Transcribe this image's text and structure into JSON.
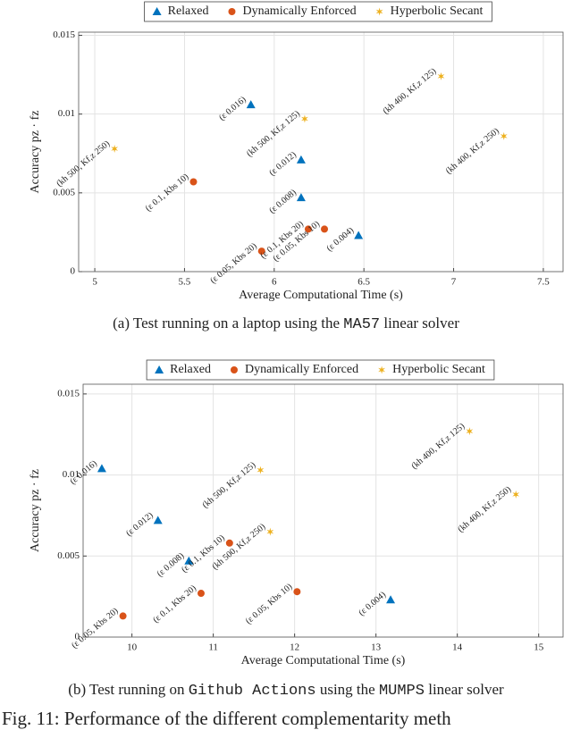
{
  "chart_data": [
    {
      "type": "scatter",
      "caption": [
        "(a) Test running on a laptop using the ",
        "MA57",
        " linear solver"
      ],
      "x_label": "Average Computational Time (s)",
      "y_label": "Accuracy pz · fz",
      "xlim": [
        4.91,
        7.61
      ],
      "ylim": [
        0,
        0.0152
      ],
      "xticks": [
        5,
        5.5,
        6,
        6.5,
        7,
        7.5
      ],
      "yticks": [
        0,
        0.005,
        0.01,
        0.015
      ],
      "grid": true,
      "legend": "top",
      "series": [
        {
          "name": "Relaxed",
          "color": "#0072bd",
          "marker": "triangle",
          "x": [
            5.87,
            6.15,
            6.15,
            6.47
          ],
          "values": [
            0.0106,
            0.0071,
            0.0047,
            0.0023
          ],
          "labels": [
            "(ε 0.016)",
            "(ε 0.012)",
            "(ε 0.008)",
            "(ε 0.004)"
          ]
        },
        {
          "name": "Dynamically Enforced",
          "color": "#d95319",
          "marker": "circle",
          "x": [
            5.55,
            5.93,
            6.19,
            6.28
          ],
          "values": [
            0.0057,
            0.0013,
            0.0027,
            0.0027
          ],
          "labels": [
            "(ε 0.1, Kbs 10)",
            "(ε 0.05, Kbs 20)",
            "(ε 0.1, Kbs 20)",
            "(ε 0.05, Kbs 10)"
          ]
        },
        {
          "name": "Hyperbolic Secant",
          "color": "#edb120",
          "marker": "star",
          "x": [
            5.11,
            6.17,
            6.93,
            7.28
          ],
          "values": [
            0.0078,
            0.0097,
            0.0124,
            0.0086
          ],
          "labels": [
            "(kh 500, Kf,z 250)",
            "(kh 500, Kf,z 125)",
            "(kh 400, Kf,z 125)",
            "(kh 400, Kf,z 250)"
          ]
        }
      ]
    },
    {
      "type": "scatter",
      "caption": [
        "(b) Test running on ",
        "Github Actions",
        " using the ",
        "MUMPS",
        " linear solver"
      ],
      "x_label": "Average Computational Time (s)",
      "y_label": "Accuracy pz · fz",
      "xlim": [
        9.4,
        15.3
      ],
      "ylim": [
        0,
        0.0156
      ],
      "xticks": [
        10,
        11,
        12,
        13,
        14,
        15
      ],
      "yticks": [
        0,
        0.005,
        0.01,
        0.015
      ],
      "grid": true,
      "legend": "top",
      "series": [
        {
          "name": "Relaxed",
          "color": "#0072bd",
          "marker": "triangle",
          "x": [
            9.63,
            10.32,
            10.7,
            13.18
          ],
          "values": [
            0.0104,
            0.0072,
            0.0047,
            0.0023
          ],
          "labels": [
            "(ε 0.016)",
            "(ε 0.012)",
            "(ε 0.008)",
            "(ε 0.004)"
          ]
        },
        {
          "name": "Dynamically Enforced",
          "color": "#d95319",
          "marker": "circle",
          "x": [
            9.89,
            10.85,
            11.2,
            12.03
          ],
          "values": [
            0.0013,
            0.0027,
            0.0058,
            0.0028
          ],
          "labels": [
            "(ε 0.05, Kbs 20)",
            "(ε 0.1, Kbs 20)",
            "(ε 0.1, Kbs 10)",
            "(ε 0.05, Kbs 10)"
          ]
        },
        {
          "name": "Hyperbolic Secant",
          "color": "#edb120",
          "marker": "star",
          "x": [
            11.58,
            11.7,
            14.15,
            14.72
          ],
          "values": [
            0.0103,
            0.0065,
            0.0127,
            0.0088
          ],
          "labels": [
            "(kh 500, Kf,z 125)",
            "(kh 500, Kf,z 250)",
            "(kh 400, Kf,z 125)",
            "(kh 400, Kf,z 250)"
          ]
        }
      ]
    }
  ],
  "figure_caption": "Fig. 11: Performance of the different complementarity meth"
}
